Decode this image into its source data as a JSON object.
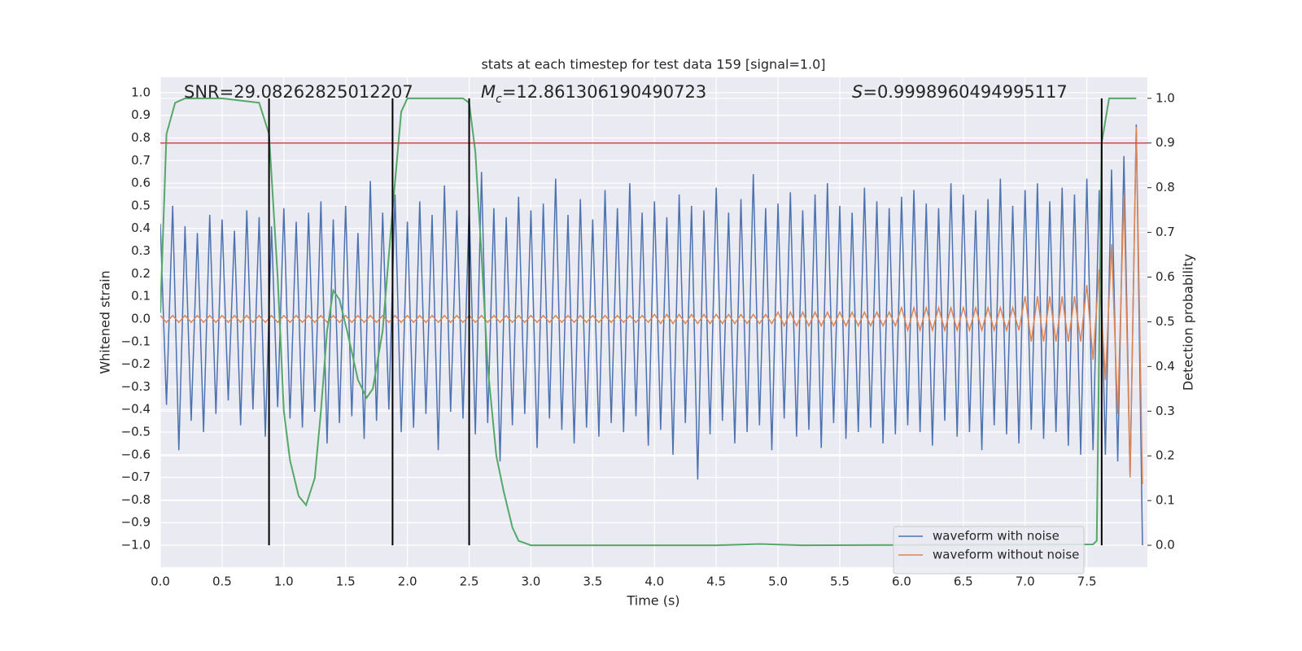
{
  "chart_data": {
    "type": "line",
    "title": "stats at each timestep for test data 159 [signal=1.0]",
    "x_label": "Time (s)",
    "y_label": "Whitened strain",
    "y2_label": "Detection probability",
    "xlim": [
      0,
      7.99
    ],
    "ylim": [
      -1.097,
      1.068
    ],
    "y2lim": [
      -0.049,
      1.047
    ],
    "xticks": [
      {
        "value": 0,
        "label": "0.0"
      },
      0.5,
      {
        "value": 1,
        "label": "1.0"
      },
      1.5,
      {
        "value": 2,
        "label": "2.0"
      },
      2.5,
      {
        "value": 3,
        "label": "3.0"
      },
      3.5,
      {
        "value": 4,
        "label": "4.0"
      },
      4.5,
      {
        "value": 5,
        "label": "5.0"
      },
      5.5,
      {
        "value": 6,
        "label": "6.0"
      },
      6.5,
      {
        "value": 7,
        "label": "7.0"
      },
      7.5
    ],
    "yticks": [
      {
        "value": -1,
        "label": "−1.0"
      },
      {
        "value": -0.9,
        "label": "−0.9"
      },
      {
        "value": -0.8,
        "label": "−0.8"
      },
      {
        "value": -0.7,
        "label": "−0.7"
      },
      {
        "value": -0.6,
        "label": "−0.6"
      },
      {
        "value": -0.5,
        "label": "−0.5"
      },
      {
        "value": -0.4,
        "label": "−0.4"
      },
      {
        "value": -0.3,
        "label": "−0.3"
      },
      {
        "value": -0.2,
        "label": "−0.2"
      },
      {
        "value": -0.1,
        "label": "−0.1"
      },
      {
        "value": 0,
        "label": "0.0"
      },
      0.1,
      0.2,
      0.3,
      0.4,
      0.5,
      0.6,
      0.7,
      0.8,
      0.9,
      {
        "value": 1,
        "label": "1.0"
      }
    ],
    "y2ticks": [
      {
        "value": 0,
        "label": "0.0"
      },
      0.1,
      0.2,
      0.3,
      0.4,
      0.5,
      0.6,
      0.7,
      0.8,
      0.9,
      {
        "value": 1,
        "label": "1.0"
      }
    ],
    "grid": true,
    "legend": "lower right",
    "annotations": [
      {
        "text": "SNR=29.08262825012207"
      },
      {
        "italic": "M",
        "sub": "c",
        "text": "=12.861306190490723"
      },
      {
        "italic": "S",
        "text": "=0.9998960494995117"
      }
    ],
    "vlines": {
      "x": [
        0.88,
        1.88,
        2.5,
        7.62
      ],
      "color": "#000000"
    },
    "hline": {
      "value": 0.9,
      "axis": "y2",
      "color": "#c44e52"
    },
    "x": [
      0,
      0.05,
      0.1,
      0.15,
      0.2,
      0.25,
      0.3,
      0.35,
      0.4,
      0.45,
      0.5,
      0.55,
      0.6,
      0.65,
      0.7,
      0.75,
      0.8,
      0.85,
      0.9,
      0.95,
      1,
      1.05,
      1.1,
      1.15,
      1.2,
      1.25,
      1.3,
      1.35,
      1.4,
      1.45,
      1.5,
      1.55,
      1.6,
      1.65,
      1.7,
      1.75,
      1.8,
      1.85,
      1.9,
      1.95,
      2,
      2.05,
      2.1,
      2.15,
      2.2,
      2.25,
      2.3,
      2.35,
      2.4,
      2.45,
      2.5,
      2.55,
      2.6,
      2.65,
      2.7,
      2.75,
      2.8,
      2.85,
      2.9,
      2.95,
      3,
      3.05,
      3.1,
      3.15,
      3.2,
      3.25,
      3.3,
      3.35,
      3.4,
      3.45,
      3.5,
      3.55,
      3.6,
      3.65,
      3.7,
      3.75,
      3.8,
      3.85,
      3.9,
      3.95,
      4,
      4.05,
      4.1,
      4.15,
      4.2,
      4.25,
      4.3,
      4.35,
      4.4,
      4.45,
      4.5,
      4.55,
      4.6,
      4.65,
      4.7,
      4.75,
      4.8,
      4.85,
      4.9,
      4.95,
      5,
      5.05,
      5.1,
      5.15,
      5.2,
      5.25,
      5.3,
      5.35,
      5.4,
      5.45,
      5.5,
      5.55,
      5.6,
      5.65,
      5.7,
      5.75,
      5.8,
      5.85,
      5.9,
      5.95,
      6,
      6.05,
      6.1,
      6.15,
      6.2,
      6.25,
      6.3,
      6.35,
      6.4,
      6.45,
      6.5,
      6.55,
      6.6,
      6.65,
      6.7,
      6.75,
      6.8,
      6.85,
      6.9,
      6.95,
      7,
      7.05,
      7.1,
      7.15,
      7.2,
      7.25,
      7.3,
      7.35,
      7.4,
      7.45,
      7.5,
      7.55,
      7.6,
      7.65,
      7.7,
      7.75,
      7.8,
      7.85,
      7.9,
      7.95
    ],
    "series": [
      {
        "name": "waveform with noise",
        "color": "#4c72b0",
        "values": [
          0.42,
          -0.38,
          0.5,
          -0.58,
          0.41,
          -0.45,
          0.38,
          -0.5,
          0.46,
          -0.42,
          0.44,
          -0.36,
          0.39,
          -0.47,
          0.48,
          -0.4,
          0.45,
          -0.52,
          0.41,
          -0.39,
          0.49,
          -0.44,
          0.43,
          -0.48,
          0.47,
          -0.41,
          0.52,
          -0.55,
          0.44,
          -0.46,
          0.5,
          -0.43,
          0.38,
          -0.53,
          0.61,
          -0.45,
          0.47,
          -0.4,
          0.55,
          -0.5,
          0.43,
          -0.48,
          0.52,
          -0.42,
          0.46,
          -0.58,
          0.59,
          -0.41,
          0.48,
          -0.44,
          0.5,
          -0.51,
          0.65,
          -0.46,
          0.49,
          -0.63,
          0.45,
          -0.47,
          0.54,
          -0.42,
          0.48,
          -0.57,
          0.51,
          -0.44,
          0.62,
          -0.49,
          0.46,
          -0.55,
          0.53,
          -0.48,
          0.44,
          -0.52,
          0.57,
          -0.46,
          0.49,
          -0.5,
          0.6,
          -0.43,
          0.47,
          -0.56,
          0.52,
          -0.49,
          0.45,
          -0.6,
          0.55,
          -0.46,
          0.5,
          -0.71,
          0.48,
          -0.51,
          0.58,
          -0.45,
          0.47,
          -0.55,
          0.53,
          -0.5,
          0.64,
          -0.47,
          0.49,
          -0.58,
          0.51,
          -0.44,
          0.56,
          -0.52,
          0.48,
          -0.49,
          0.55,
          -0.57,
          0.6,
          -0.46,
          0.5,
          -0.53,
          0.47,
          -0.5,
          0.58,
          -0.48,
          0.52,
          -0.55,
          0.49,
          -0.51,
          0.54,
          -0.47,
          0.57,
          -0.5,
          0.51,
          -0.56,
          0.49,
          -0.45,
          0.6,
          -0.52,
          0.55,
          -0.5,
          0.48,
          -0.58,
          0.53,
          -0.47,
          0.62,
          -0.51,
          0.5,
          -0.55,
          0.57,
          -0.49,
          0.6,
          -0.53,
          0.52,
          -0.5,
          0.58,
          -0.56,
          0.55,
          -0.6,
          0.62,
          -0.58,
          0.57,
          -0.6,
          0.66,
          -0.63,
          0.72,
          -0.7,
          0.86,
          -1.0
        ]
      },
      {
        "name": "waveform without noise",
        "color": "#dd8452",
        "values": [
          0.015,
          -0.015,
          0.015,
          -0.015,
          0.015,
          -0.015,
          0.015,
          -0.015,
          0.015,
          -0.015,
          0.015,
          -0.015,
          0.015,
          -0.015,
          0.015,
          -0.015,
          0.015,
          -0.015,
          0.015,
          -0.015,
          0.015,
          -0.015,
          0.015,
          -0.015,
          0.015,
          -0.015,
          0.015,
          -0.015,
          0.015,
          -0.015,
          0.015,
          -0.015,
          0.015,
          -0.015,
          0.015,
          -0.015,
          0.015,
          -0.015,
          0.015,
          -0.015,
          0.015,
          -0.015,
          0.015,
          -0.015,
          0.015,
          -0.015,
          0.015,
          -0.015,
          0.015,
          -0.015,
          0.015,
          -0.015,
          0.015,
          -0.015,
          0.015,
          -0.015,
          0.015,
          -0.015,
          0.015,
          -0.015,
          0.015,
          -0.015,
          0.015,
          -0.015,
          0.015,
          -0.015,
          0.015,
          -0.015,
          0.015,
          -0.015,
          0.015,
          -0.015,
          0.015,
          -0.015,
          0.015,
          -0.015,
          0.015,
          -0.015,
          0.015,
          -0.015,
          0.02,
          -0.02,
          0.02,
          -0.02,
          0.02,
          -0.02,
          0.02,
          -0.02,
          0.02,
          -0.02,
          0.02,
          -0.02,
          0.02,
          -0.02,
          0.02,
          -0.02,
          0.02,
          -0.02,
          0.02,
          -0.02,
          0.03,
          -0.03,
          0.03,
          -0.03,
          0.03,
          -0.03,
          0.03,
          -0.03,
          0.03,
          -0.03,
          0.03,
          -0.03,
          0.03,
          -0.03,
          0.03,
          -0.03,
          0.03,
          -0.03,
          0.03,
          -0.03,
          0.05,
          -0.05,
          0.05,
          -0.05,
          0.05,
          -0.05,
          0.05,
          -0.05,
          0.05,
          -0.05,
          0.05,
          -0.05,
          0.05,
          -0.05,
          0.05,
          -0.05,
          0.05,
          -0.05,
          0.05,
          -0.05,
          0.1,
          -0.1,
          0.1,
          -0.1,
          0.1,
          -0.1,
          0.1,
          -0.1,
          0.1,
          -0.1,
          0.15,
          -0.18,
          0.22,
          -0.27,
          0.33,
          -0.42,
          0.55,
          -0.7,
          0.85,
          -0.73
        ]
      },
      {
        "color": "#55a868",
        "axis": "y2",
        "x": [
          0,
          0.05,
          0.12,
          0.2,
          0.5,
          0.8,
          0.88,
          0.95,
          1,
          1.05,
          1.12,
          1.18,
          1.25,
          1.3,
          1.35,
          1.4,
          1.45,
          1.52,
          1.6,
          1.67,
          1.72,
          1.8,
          1.88,
          1.95,
          2,
          2.45,
          2.5,
          2.55,
          2.6,
          2.65,
          2.72,
          2.78,
          2.85,
          2.9,
          3,
          4.5,
          4.85,
          5.2,
          7.55,
          7.58,
          7.62,
          7.68,
          7.9
        ],
        "values": [
          0.52,
          0.92,
          0.99,
          1.0,
          1.0,
          0.99,
          0.92,
          0.6,
          0.3,
          0.19,
          0.11,
          0.09,
          0.15,
          0.3,
          0.48,
          0.57,
          0.55,
          0.47,
          0.37,
          0.33,
          0.35,
          0.48,
          0.75,
          0.97,
          1.0,
          1.0,
          0.99,
          0.88,
          0.65,
          0.4,
          0.2,
          0.12,
          0.04,
          0.01,
          0.0,
          0.0,
          0.003,
          0.0,
          0.002,
          0.01,
          0.9,
          1.0,
          1.0
        ]
      }
    ]
  }
}
